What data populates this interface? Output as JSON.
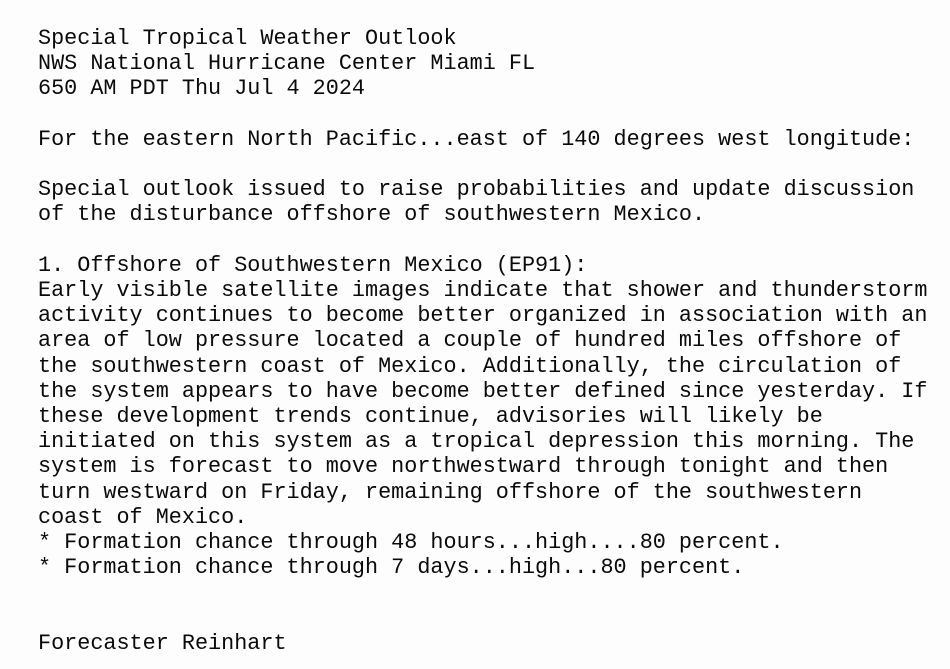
{
  "bulletin": {
    "header_lines": [
      "Special Tropical Weather Outlook",
      "NWS National Hurricane Center Miami FL",
      "650 AM PDT Thu Jul 4 2024"
    ],
    "region_line": "For the eastern North Pacific...east of 140 degrees west longitude:",
    "special_note_lines": [
      "Special outlook issued to raise probabilities and update discussion",
      "of the disturbance offshore of southwestern Mexico."
    ],
    "system_1": {
      "heading": "1. Offshore of Southwestern Mexico (EP91):",
      "discussion_lines": [
        "Early visible satellite images indicate that shower and thunderstorm",
        "activity continues to become better organized in association with an",
        "area of low pressure located a couple of hundred miles offshore of",
        "the southwestern coast of Mexico. Additionally, the circulation of",
        "the system appears to have become better defined since yesterday. If",
        "these development trends continue, advisories will likely be",
        "initiated on this system as a tropical depression this morning. The",
        "system is forecast to move northwestward through tonight and then",
        "turn westward on Friday, remaining offshore of the southwestern",
        "coast of Mexico."
      ],
      "formation_chance_lines": [
        "* Formation chance through 48 hours...high....80 percent.",
        "* Formation chance through 7 days...high...80 percent."
      ]
    },
    "signature": "Forecaster Reinhart"
  },
  "colors": {
    "background": "#fdfdfd",
    "text": "#0a0a0a"
  }
}
